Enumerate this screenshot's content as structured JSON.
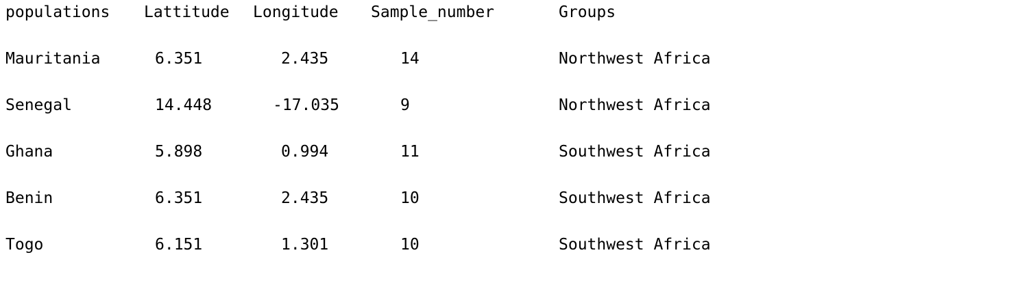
{
  "table": {
    "headers": [
      "populations",
      "Lattitude",
      "Longitude",
      "Sample_number",
      "Groups"
    ],
    "rows": [
      [
        "Mauritania",
        "6.351",
        "2.435",
        "14",
        "Northwest Africa"
      ],
      [
        "Senegal",
        "14.448",
        "-17.035",
        "9",
        "Northwest Africa"
      ],
      [
        "Ghana",
        "5.898",
        "0.994",
        "11",
        "Southwest Africa"
      ],
      [
        "Benin",
        "6.351",
        "2.435",
        "10",
        "Southwest Africa"
      ],
      [
        "Togo",
        "6.151",
        "1.301",
        "10",
        "Southwest Africa"
      ]
    ]
  }
}
